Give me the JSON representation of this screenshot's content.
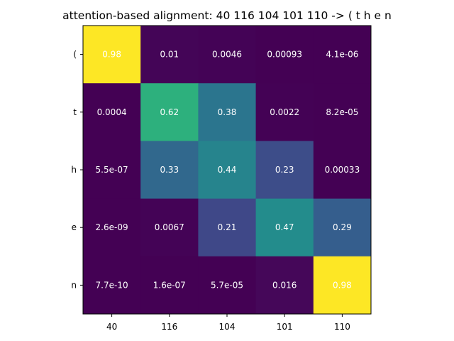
{
  "chart_data": {
    "type": "heatmap",
    "title": "attention-based alignment: 40 116 104 101 110 -> ( t h e n",
    "x_tick_labels": [
      "40",
      "116",
      "104",
      "101",
      "110"
    ],
    "y_tick_labels": [
      "(",
      "t",
      "h",
      "e",
      "n"
    ],
    "values": [
      [
        0.98,
        0.01,
        0.0046,
        0.00093,
        4.1e-06
      ],
      [
        0.0004,
        0.62,
        0.38,
        0.0022,
        8.2e-05
      ],
      [
        5.5e-07,
        0.33,
        0.44,
        0.23,
        0.00033
      ],
      [
        2.6e-09,
        0.0067,
        0.21,
        0.47,
        0.29
      ],
      [
        7.7e-10,
        1.6e-07,
        5.7e-05,
        0.016,
        0.98
      ]
    ],
    "cell_labels": [
      [
        "0.98",
        "0.01",
        "0.0046",
        "0.00093",
        "4.1e-06"
      ],
      [
        "0.0004",
        "0.62",
        "0.38",
        "0.0022",
        "8.2e-05"
      ],
      [
        "5.5e-07",
        "0.33",
        "0.44",
        "0.23",
        "0.00033"
      ],
      [
        "2.6e-09",
        "0.0067",
        "0.21",
        "0.47",
        "0.29"
      ],
      [
        "7.7e-10",
        "1.6e-07",
        "5.7e-05",
        "0.016",
        "0.98"
      ]
    ],
    "colormap": "viridis",
    "value_range": [
      0,
      0.98
    ],
    "grid": false,
    "cell_label_color": "#ffffff"
  }
}
